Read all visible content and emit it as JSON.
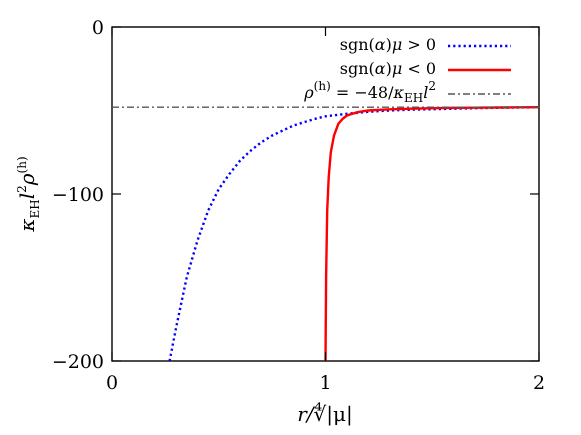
{
  "chart_data": {
    "type": "line",
    "xlabel": "r/∜|μ|",
    "ylabel": "κEH l² ρ(h)",
    "xlim": [
      0,
      2
    ],
    "ylim": [
      -200,
      0
    ],
    "x_ticks": [
      0,
      1,
      2
    ],
    "y_ticks": [
      0,
      -100,
      -200
    ],
    "x_tick_labels": [
      "0",
      "1",
      "2"
    ],
    "y_tick_labels": [
      "0",
      "−100",
      "−200"
    ],
    "grid": false,
    "legend_position": "top-right",
    "series": [
      {
        "name": "sgn(α)μ > 0",
        "color": "#0000ff",
        "style": "dotted",
        "points": [
          [
            0.27,
            -200
          ],
          [
            0.3,
            -180
          ],
          [
            0.35,
            -150
          ],
          [
            0.4,
            -128
          ],
          [
            0.45,
            -110
          ],
          [
            0.5,
            -97
          ],
          [
            0.55,
            -88
          ],
          [
            0.6,
            -80
          ],
          [
            0.65,
            -74
          ],
          [
            0.7,
            -69
          ],
          [
            0.75,
            -65
          ],
          [
            0.8,
            -62
          ],
          [
            0.85,
            -59
          ],
          [
            0.9,
            -57
          ],
          [
            0.95,
            -55
          ],
          [
            1.0,
            -53.5
          ],
          [
            1.1,
            -52
          ],
          [
            1.2,
            -50.8
          ],
          [
            1.3,
            -50
          ],
          [
            1.4,
            -49.5
          ],
          [
            1.5,
            -49.2
          ],
          [
            1.6,
            -48.9
          ],
          [
            1.7,
            -48.6
          ],
          [
            1.8,
            -48.4
          ],
          [
            1.9,
            -48.2
          ],
          [
            2.0,
            -48.1
          ]
        ]
      },
      {
        "name": "sgn(α)μ < 0",
        "color": "#ff0000",
        "style": "solid",
        "points": [
          [
            1.0,
            -200
          ],
          [
            1.003,
            -150
          ],
          [
            1.008,
            -110
          ],
          [
            1.015,
            -90
          ],
          [
            1.025,
            -75
          ],
          [
            1.04,
            -65
          ],
          [
            1.06,
            -58
          ],
          [
            1.08,
            -55
          ],
          [
            1.1,
            -53
          ],
          [
            1.15,
            -51
          ],
          [
            1.2,
            -50
          ],
          [
            1.3,
            -49.3
          ],
          [
            1.4,
            -48.9
          ],
          [
            1.5,
            -48.6
          ],
          [
            1.6,
            -48.4
          ],
          [
            1.7,
            -48.3
          ],
          [
            1.8,
            -48.2
          ],
          [
            1.9,
            -48.1
          ],
          [
            2.0,
            -48.05
          ]
        ]
      },
      {
        "name": "ρ(h) = −48/κEH l²",
        "color": "#555555",
        "style": "dash-dot",
        "points": [
          [
            0,
            -48
          ],
          [
            2,
            -48
          ]
        ]
      }
    ]
  }
}
